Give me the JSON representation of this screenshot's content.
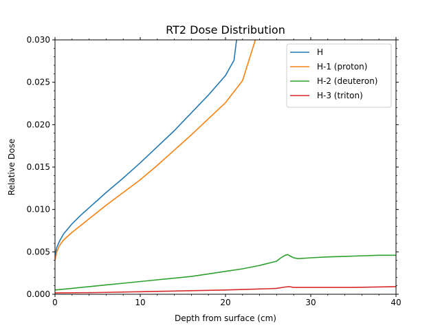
{
  "chart_data": {
    "type": "line",
    "title": "RT2 Dose Distribution",
    "xlabel": "Depth from surface (cm)",
    "ylabel": "Relative Dose",
    "xlim": [
      0,
      40
    ],
    "ylim": [
      0,
      0.03
    ],
    "xticks": [
      0,
      10,
      20,
      30,
      40
    ],
    "xtick_labels": [
      "0",
      "10",
      "20",
      "30",
      "40"
    ],
    "yticks": [
      0,
      0.005,
      0.01,
      0.015,
      0.02,
      0.025,
      0.03
    ],
    "ytick_labels": [
      "0.000",
      "0.005",
      "0.010",
      "0.015",
      "0.020",
      "0.025",
      "0.030"
    ],
    "grid": false,
    "legend_position": "top-right",
    "series": [
      {
        "name": "H",
        "color": "#1f77b4",
        "x": [
          0,
          0.2,
          0.5,
          1,
          1.5,
          2,
          3,
          4,
          5,
          6,
          8,
          10,
          12,
          14,
          16,
          18,
          20,
          21,
          21.3
        ],
        "y": [
          0.0045,
          0.0055,
          0.0062,
          0.0071,
          0.0077,
          0.0083,
          0.0093,
          0.0102,
          0.0111,
          0.012,
          0.0137,
          0.0155,
          0.0174,
          0.0193,
          0.0214,
          0.0235,
          0.0258,
          0.0276,
          0.03
        ]
      },
      {
        "name": "H-1 (proton)",
        "color": "#ff7f0e",
        "x": [
          0,
          0.2,
          0.5,
          1,
          2,
          3,
          4,
          5,
          6,
          8,
          10,
          12,
          14,
          16,
          18,
          20,
          22,
          23.5
        ],
        "y": [
          0.004,
          0.005,
          0.0057,
          0.0064,
          0.0073,
          0.0081,
          0.0089,
          0.0097,
          0.0105,
          0.012,
          0.0135,
          0.0152,
          0.017,
          0.0188,
          0.0207,
          0.0226,
          0.0252,
          0.03
        ]
      },
      {
        "name": "H-2 (deuteron)",
        "color": "#2ca02c",
        "x": [
          0,
          2,
          4,
          6,
          8,
          10,
          12,
          14,
          16,
          18,
          20,
          22,
          24,
          26,
          26.5,
          27,
          27.3,
          27.6,
          28,
          28.5,
          30,
          32,
          35,
          38,
          40
        ],
        "y": [
          0.0005,
          0.0007,
          0.0009,
          0.0011,
          0.0013,
          0.0015,
          0.0017,
          0.0019,
          0.0021,
          0.0024,
          0.0027,
          0.003,
          0.0034,
          0.0039,
          0.0043,
          0.0046,
          0.00468,
          0.0045,
          0.0043,
          0.0042,
          0.0043,
          0.0044,
          0.0045,
          0.0046,
          0.0046
        ]
      },
      {
        "name": "H-3 (triton)",
        "color": "#d62728",
        "x": [
          0,
          5,
          10,
          15,
          20,
          25,
          26,
          27,
          27.5,
          28,
          30,
          35,
          40
        ],
        "y": [
          0.00015,
          0.0002,
          0.0003,
          0.0004,
          0.0005,
          0.00065,
          0.0007,
          0.00085,
          0.0009,
          0.0008,
          0.0008,
          0.0008,
          0.0009
        ]
      }
    ]
  }
}
